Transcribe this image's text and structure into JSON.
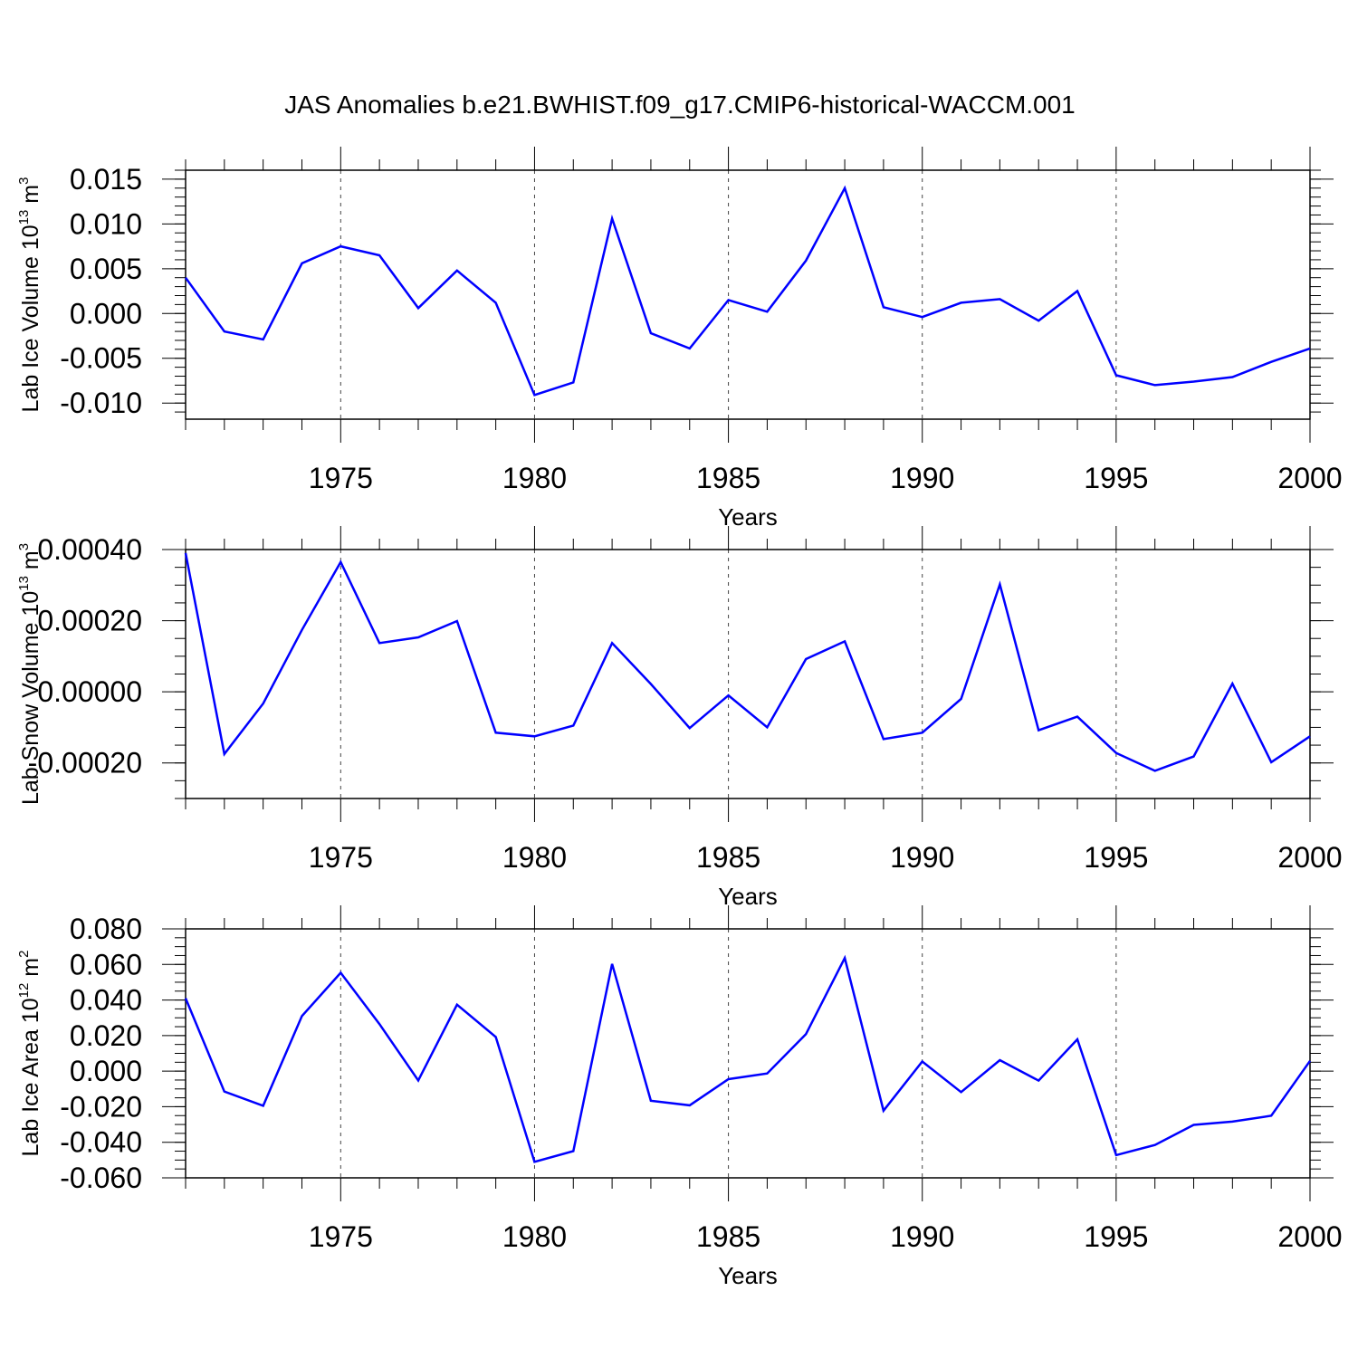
{
  "figure_title": "JAS Anomalies b.e21.BWHIST.f09_g17.CMIP6-historical-WACCM.001",
  "line_color": "#0000ff",
  "chart_data": [
    {
      "type": "line",
      "ylabel_parts": [
        "Lab Ice Volume 10",
        "13",
        " m",
        "3"
      ],
      "xlabel": "Years",
      "x": [
        1971,
        1972,
        1973,
        1974,
        1975,
        1976,
        1977,
        1978,
        1979,
        1980,
        1981,
        1982,
        1983,
        1984,
        1985,
        1986,
        1987,
        1988,
        1989,
        1990,
        1991,
        1992,
        1993,
        1994,
        1995,
        1996,
        1997,
        1998,
        1999,
        2000
      ],
      "values": [
        0.004,
        -0.002,
        -0.0029,
        0.0056,
        0.0075,
        0.0065,
        0.0006,
        0.0048,
        0.0012,
        -0.0091,
        -0.0077,
        0.0106,
        -0.0022,
        -0.0039,
        0.0015,
        0.0002,
        0.0059,
        0.014,
        0.0007,
        -0.0004,
        0.0012,
        0.0016,
        -0.0008,
        0.0025,
        -0.0069,
        -0.008,
        -0.0076,
        -0.0071,
        -0.0054,
        -0.0039
      ],
      "xlim": [
        1971,
        2000
      ],
      "ylim": [
        -0.0118,
        0.016
      ],
      "xticks": [
        1975,
        1980,
        1985,
        1990,
        1995,
        2000
      ],
      "xtick_labels": [
        "1975",
        "1980",
        "1985",
        "1990",
        "1995",
        "2000"
      ],
      "yticks": [
        0.015,
        0.01,
        0.005,
        0.0,
        -0.005,
        -0.01
      ],
      "ytick_labels": [
        "0.015",
        "0.010",
        "0.005",
        "0.000",
        "-0.005",
        "-0.010"
      ],
      "yminor_step": 0.001,
      "grid": "dashed vertical at major x ticks"
    },
    {
      "type": "line",
      "ylabel_parts": [
        "Lab Snow Volume 10",
        "13",
        " m",
        "3"
      ],
      "xlabel": "Years",
      "x": [
        1971,
        1972,
        1973,
        1974,
        1975,
        1976,
        1977,
        1978,
        1979,
        1980,
        1981,
        1982,
        1983,
        1984,
        1985,
        1986,
        1987,
        1988,
        1989,
        1990,
        1991,
        1992,
        1993,
        1994,
        1995,
        1996,
        1997,
        1998,
        1999,
        2000
      ],
      "values": [
        0.00039,
        -0.000175,
        -3.3e-05,
        0.000174,
        0.000365,
        0.000137,
        0.000153,
        0.000199,
        -0.000115,
        -0.000125,
        -9.5e-05,
        0.000137,
        2.2e-05,
        -0.000102,
        -1e-05,
        -0.0001,
        9.2e-05,
        0.000142,
        -0.000133,
        -0.000115,
        -2e-05,
        0.000302,
        -0.000108,
        -7e-05,
        -0.000172,
        -0.000222,
        -0.000182,
        2.3e-05,
        -0.000198,
        -0.000125
      ],
      "xlim": [
        1971,
        2000
      ],
      "ylim": [
        -0.0003,
        0.0004
      ],
      "xticks": [
        1975,
        1980,
        1985,
        1990,
        1995,
        2000
      ],
      "xtick_labels": [
        "1975",
        "1980",
        "1985",
        "1990",
        "1995",
        "2000"
      ],
      "yticks": [
        0.0004,
        0.0002,
        0.0,
        -0.0002
      ],
      "ytick_labels": [
        "0.00040",
        "0.00020",
        "0.00000",
        "-0.00020"
      ],
      "yminor_step": 5e-05,
      "grid": "dashed vertical at major x ticks"
    },
    {
      "type": "line",
      "ylabel_parts": [
        "Lab Ice Area 10",
        "12",
        " m",
        "2"
      ],
      "xlabel": "Years",
      "x": [
        1971,
        1972,
        1973,
        1974,
        1975,
        1976,
        1977,
        1978,
        1979,
        1980,
        1981,
        1982,
        1983,
        1984,
        1985,
        1986,
        1987,
        1988,
        1989,
        1990,
        1991,
        1992,
        1993,
        1994,
        1995,
        1996,
        1997,
        1998,
        1999,
        2000
      ],
      "values": [
        0.041,
        -0.0115,
        -0.0195,
        0.031,
        0.0553,
        0.0265,
        -0.0052,
        0.0374,
        0.0192,
        -0.051,
        -0.045,
        0.0603,
        -0.0167,
        -0.0192,
        -0.0045,
        -0.0013,
        0.0208,
        0.0636,
        -0.0222,
        0.0054,
        -0.0118,
        0.0062,
        -0.0053,
        0.0179,
        -0.0472,
        -0.0415,
        -0.0302,
        -0.0284,
        -0.0251,
        0.0058
      ],
      "xlim": [
        1971,
        2000
      ],
      "ylim": [
        -0.06,
        0.08
      ],
      "xticks": [
        1975,
        1980,
        1985,
        1990,
        1995,
        2000
      ],
      "xtick_labels": [
        "1975",
        "1980",
        "1985",
        "1990",
        "1995",
        "2000"
      ],
      "yticks": [
        0.08,
        0.06,
        0.04,
        0.02,
        0.0,
        -0.02,
        -0.04,
        -0.06
      ],
      "ytick_labels": [
        "0.080",
        "0.060",
        "0.040",
        "0.020",
        "0.000",
        "-0.020",
        "-0.040",
        "-0.060"
      ],
      "yminor_step": 0.005,
      "grid": "dashed vertical at major x ticks"
    }
  ]
}
